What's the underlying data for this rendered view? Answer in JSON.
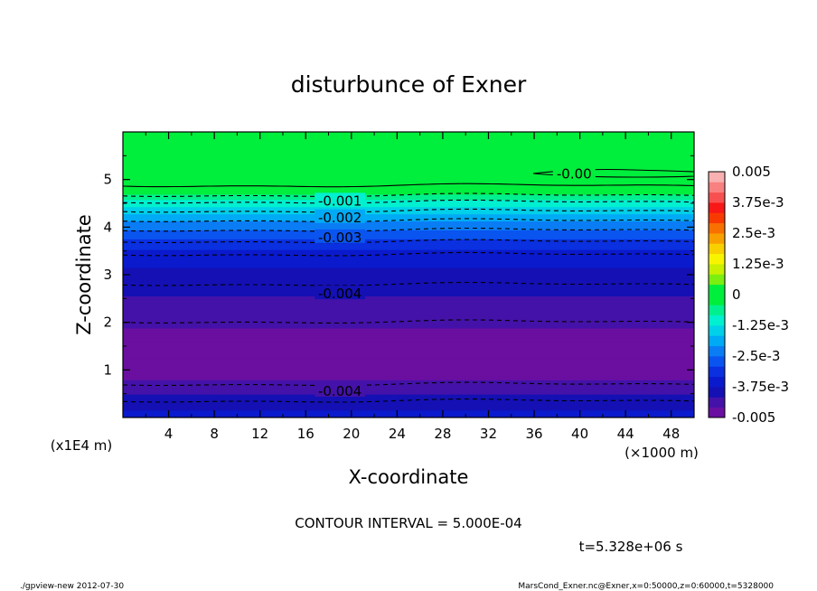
{
  "chart_data": {
    "type": "heatmap",
    "title": "disturbunce of Exner",
    "xlabel": "X-coordinate",
    "ylabel": "Z-coordinate",
    "x_unit": "(×1000 m)",
    "y_unit": "(x1E4 m)",
    "xlim": [
      0,
      50
    ],
    "ylim": [
      0,
      6
    ],
    "x_ticks": [
      4,
      8,
      12,
      16,
      20,
      24,
      28,
      32,
      36,
      40,
      44,
      48
    ],
    "y_ticks": [
      1,
      2,
      3,
      4,
      5
    ],
    "profile_z": [
      0.0,
      0.1,
      0.25,
      0.4,
      0.55,
      0.7,
      0.95,
      1.2,
      1.5,
      1.75,
      2.1,
      2.5,
      2.8,
      3.1,
      3.4,
      3.65,
      3.9,
      4.1,
      4.3,
      4.5,
      4.65,
      4.75,
      5.0,
      6.0
    ],
    "profile_values": [
      -0.0036,
      -0.0037,
      -0.0039,
      -0.00405,
      -0.00425,
      -0.0045,
      -0.0047,
      -0.0048,
      -0.0048,
      -0.00465,
      -0.00445,
      -0.0042,
      -0.004,
      -0.0038,
      -0.00355,
      -0.0031,
      -0.0026,
      -0.0021,
      -0.0016,
      -0.0011,
      -0.0006,
      -0.0001,
      0.0001,
      0.0001
    ],
    "colorbar": {
      "labels": [
        "0.005",
        "3.75e-3",
        "2.5e-3",
        "1.25e-3",
        "0",
        "-1.25e-3",
        "-2.5e-3",
        "-3.75e-3",
        "-0.005"
      ],
      "values": [
        0.005,
        0.00375,
        0.0025,
        0.00125,
        0,
        -0.00125,
        -0.0025,
        -0.00375,
        -0.005
      ],
      "min": -0.005,
      "max": 0.005,
      "colors": [
        "#6a0fa0",
        "#4412a8",
        "#1410b4",
        "#0a1acc",
        "#0a30e0",
        "#0a55f0",
        "#0a7df5",
        "#00aaf5",
        "#00d0e8",
        "#00f0d0",
        "#00f090",
        "#00ee3c",
        "#00ee3c",
        "#7cef10",
        "#c8f000",
        "#f8f400",
        "#f8d000",
        "#f8a000",
        "#f87000",
        "#f83a00",
        "#f81818",
        "#f85050",
        "#f88080",
        "#f8b0b0"
      ]
    },
    "contour_labels": [
      {
        "text": "-0.00",
        "x": 39.5,
        "z": 5.12
      },
      {
        "text": "-0.001",
        "x": 19,
        "z": 4.55
      },
      {
        "text": "-0.002",
        "x": 19,
        "z": 4.2
      },
      {
        "text": "-0.003",
        "x": 19,
        "z": 3.78
      },
      {
        "text": "-0.004",
        "x": 19,
        "z": 2.6
      },
      {
        "text": "-0.004",
        "x": 19,
        "z": 0.55
      }
    ],
    "contour_interval": "CONTOUR INTERVAL = 5.000E-04",
    "time": "t=5.328e+06 s"
  },
  "footer": {
    "left": "./gpview-new   2012-07-30",
    "right": "MarsCond_Exner.nc@Exner,x=0:50000,z=0:60000,t=5328000"
  }
}
